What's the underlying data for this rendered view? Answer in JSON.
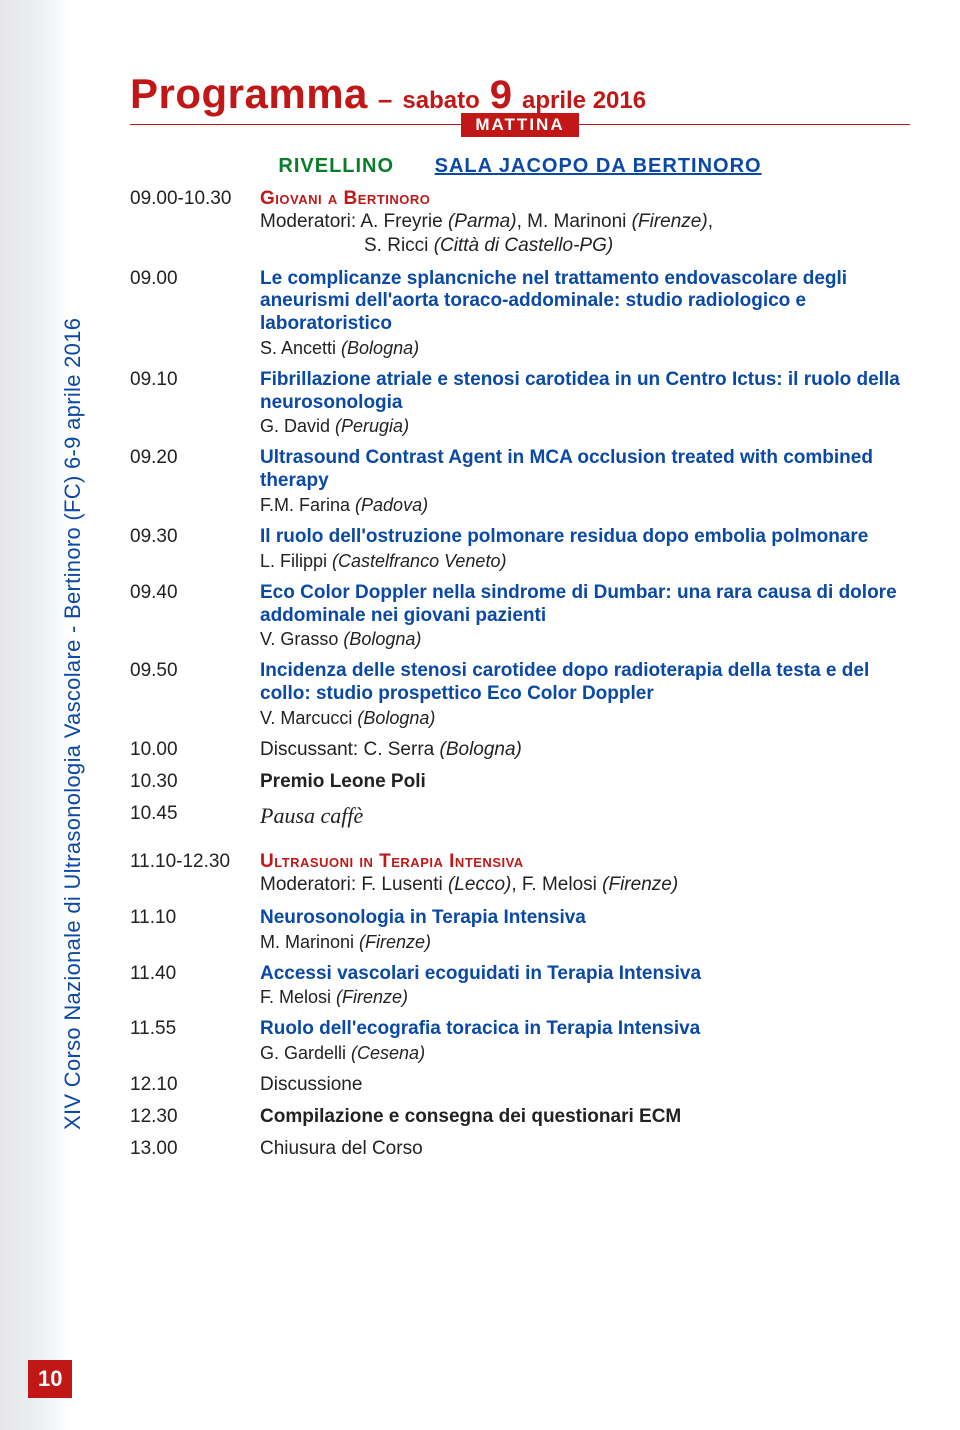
{
  "colors": {
    "red": "#c21717",
    "blue": "#0a49a6",
    "green": "#0a7d2b",
    "text": "#222222",
    "bg": "#ffffff"
  },
  "page_number": "10",
  "side_text": "XIV Corso Nazionale di Ultrasonologia Vascolare - Bertinoro (FC) 6-9 aprile 2016",
  "header": {
    "word": "Programma",
    "dash": "–",
    "day": "sabato",
    "bignum": "9",
    "rest": "aprile 2016",
    "badge": "MATTINA",
    "room_a": "RIVELLINO",
    "room_b": "SALA JACOPO DA BERTINORO"
  },
  "session1": {
    "time": "09.00-10.30",
    "title": "Giovani a Bertinoro",
    "moderators_label": "Moderatori: A. Freyrie ",
    "moderators_loc1": "(Parma)",
    "moderators_mid": ", M. Marinoni ",
    "moderators_loc2": "(Firenze)",
    "moderators_line2a": "S. Ricci ",
    "moderators_line2b": "(Città di Castello-PG)"
  },
  "talks": [
    {
      "time": "09.00",
      "title": "Le complicanze splancniche nel trattamento endovascolare degli aneurismi dell'aorta toraco-addominale: studio radiologico e laboratoristico",
      "sp": "S. Ancetti ",
      "loc": "(Bologna)"
    },
    {
      "time": "09.10",
      "title": "Fibrillazione atriale e stenosi carotidea in un Centro Ictus: il ruolo della neurosonologia",
      "sp": "G. David ",
      "loc": "(Perugia)"
    },
    {
      "time": "09.20",
      "title": "Ultrasound Contrast Agent in MCA occlusion treated with combined therapy",
      "sp": "F.M. Farina ",
      "loc": "(Padova)"
    },
    {
      "time": "09.30",
      "title": "Il ruolo dell'ostruzione polmonare residua dopo embolia polmonare",
      "sp": "L. Filippi ",
      "loc": "(Castelfranco Veneto)"
    },
    {
      "time": "09.40",
      "title": "Eco Color Doppler nella sindrome di Dumbar: una rara causa di dolore addominale nei giovani pazienti",
      "sp": "V. Grasso ",
      "loc": "(Bologna)"
    },
    {
      "time": "09.50",
      "title": "Incidenza delle stenosi carotidee dopo radioterapia della testa e del collo: studio prospettico Eco Color Doppler",
      "sp": "V. Marcucci ",
      "loc": "(Bologna)"
    }
  ],
  "line_discussant": {
    "time": "10.00",
    "pre": "Discussant: C. Serra ",
    "loc": "(Bologna)"
  },
  "line_premio": {
    "time": "10.30",
    "text": "Premio Leone Poli"
  },
  "line_coffee": {
    "time": "10.45",
    "text": "Pausa caffè"
  },
  "session2": {
    "time": "11.10-12.30",
    "title": "Ultrasuoni in Terapia Intensiva",
    "mod_a": "Moderatori: F. Lusenti ",
    "mod_a_loc": "(Lecco)",
    "mod_mid": ", F. Melosi ",
    "mod_b_loc": "(Firenze)"
  },
  "talks2": [
    {
      "time": "11.10",
      "title": "Neurosonologia in Terapia Intensiva",
      "sp": "M. Marinoni ",
      "loc": "(Firenze)"
    },
    {
      "time": "11.40",
      "title": "Accessi vascolari ecoguidati in Terapia Intensiva",
      "sp": "F. Melosi ",
      "loc": "(Firenze)"
    },
    {
      "time": "11.55",
      "title": "Ruolo dell'ecografia toracica in Terapia Intensiva",
      "sp": "G. Gardelli ",
      "loc": "(Cesena)"
    }
  ],
  "line_disc2": {
    "time": "12.10",
    "text": "Discussione"
  },
  "line_ecm": {
    "time": "12.30",
    "text": "Compilazione e consegna dei questionari ECM"
  },
  "line_close": {
    "time": "13.00",
    "text": "Chiusura del Corso"
  }
}
